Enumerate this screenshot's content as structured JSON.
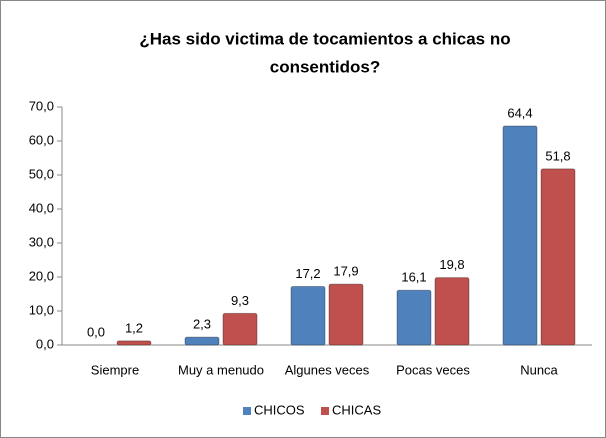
{
  "chart_data": {
    "type": "bar",
    "title": [
      "¿Has sido victima de tocamientos a chicas  no",
      "consentidos?"
    ],
    "categories": [
      "Siempre",
      "Muy a menudo",
      "Algunes veces",
      "Pocas veces",
      "Nunca"
    ],
    "series": [
      {
        "name": "CHICOS",
        "color": "#4f81bd",
        "values": [
          0,
          2.3,
          17.2,
          16.1,
          64.4
        ],
        "value_labels": [
          "0,0",
          "2,3",
          "17,2",
          "16,1",
          "64,4"
        ]
      },
      {
        "name": "CHICAS",
        "color": "#c0504d",
        "values": [
          1.2,
          9.3,
          17.9,
          19.8,
          51.8
        ],
        "value_labels": [
          "1,2",
          "9,3",
          "17,9",
          "19,8",
          "51,8"
        ]
      }
    ],
    "ylim": [
      0,
      70
    ],
    "yticks": [
      {
        "value": 0,
        "label": "0,0"
      },
      {
        "value": 10,
        "label": "10,0"
      },
      {
        "value": 20,
        "label": "20,0"
      },
      {
        "value": 30,
        "label": "30,0"
      },
      {
        "value": 40,
        "label": "40,0"
      },
      {
        "value": 50,
        "label": "50,0"
      },
      {
        "value": 60,
        "label": "60,0"
      },
      {
        "value": 70,
        "label": "70,0"
      }
    ],
    "grid": false,
    "legend": "bottom"
  }
}
